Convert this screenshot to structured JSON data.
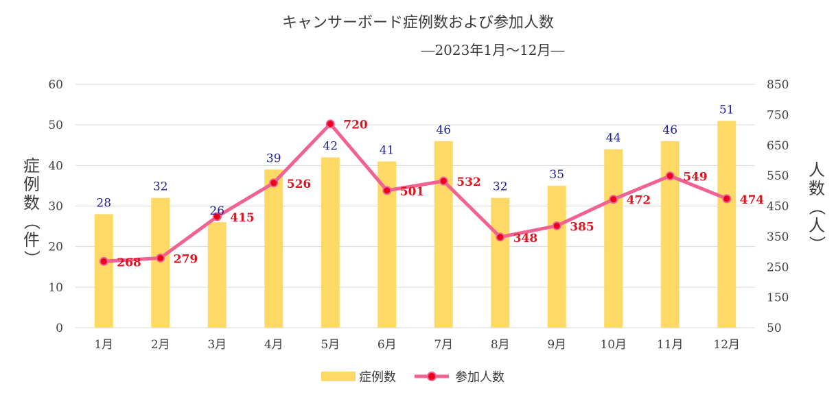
{
  "chart_data": {
    "type": "bar",
    "title": "キャンサーボード症例数および参加人数",
    "subtitle": "―2023年1月～12月―",
    "categories": [
      "1月",
      "2月",
      "3月",
      "4月",
      "5月",
      "6月",
      "7月",
      "8月",
      "9月",
      "10月",
      "11月",
      "12月"
    ],
    "series": [
      {
        "name": "症例数",
        "type": "bar",
        "axis": "left",
        "color": "#FFD966",
        "values": [
          28,
          32,
          26,
          39,
          42,
          41,
          46,
          32,
          35,
          44,
          46,
          51
        ]
      },
      {
        "name": "参加人数",
        "type": "line",
        "axis": "right",
        "color": "#F06292",
        "marker_color": "#E8001C",
        "values": [
          268,
          279,
          415,
          526,
          720,
          501,
          532,
          348,
          385,
          472,
          549,
          474
        ]
      }
    ],
    "ylabel_left": "症例数（件）",
    "ylabel_right": "人数（人）",
    "ylim_left": [
      0,
      60
    ],
    "yticks_left": [
      0,
      10,
      20,
      30,
      40,
      50,
      60
    ],
    "ylim_right": [
      50,
      850
    ],
    "yticks_right": [
      50,
      150,
      250,
      350,
      450,
      550,
      650,
      750,
      850
    ],
    "grid": true,
    "legend_position": "bottom",
    "bar_label_color": "#1F1F9A",
    "line_label_color": "#E0141E"
  }
}
